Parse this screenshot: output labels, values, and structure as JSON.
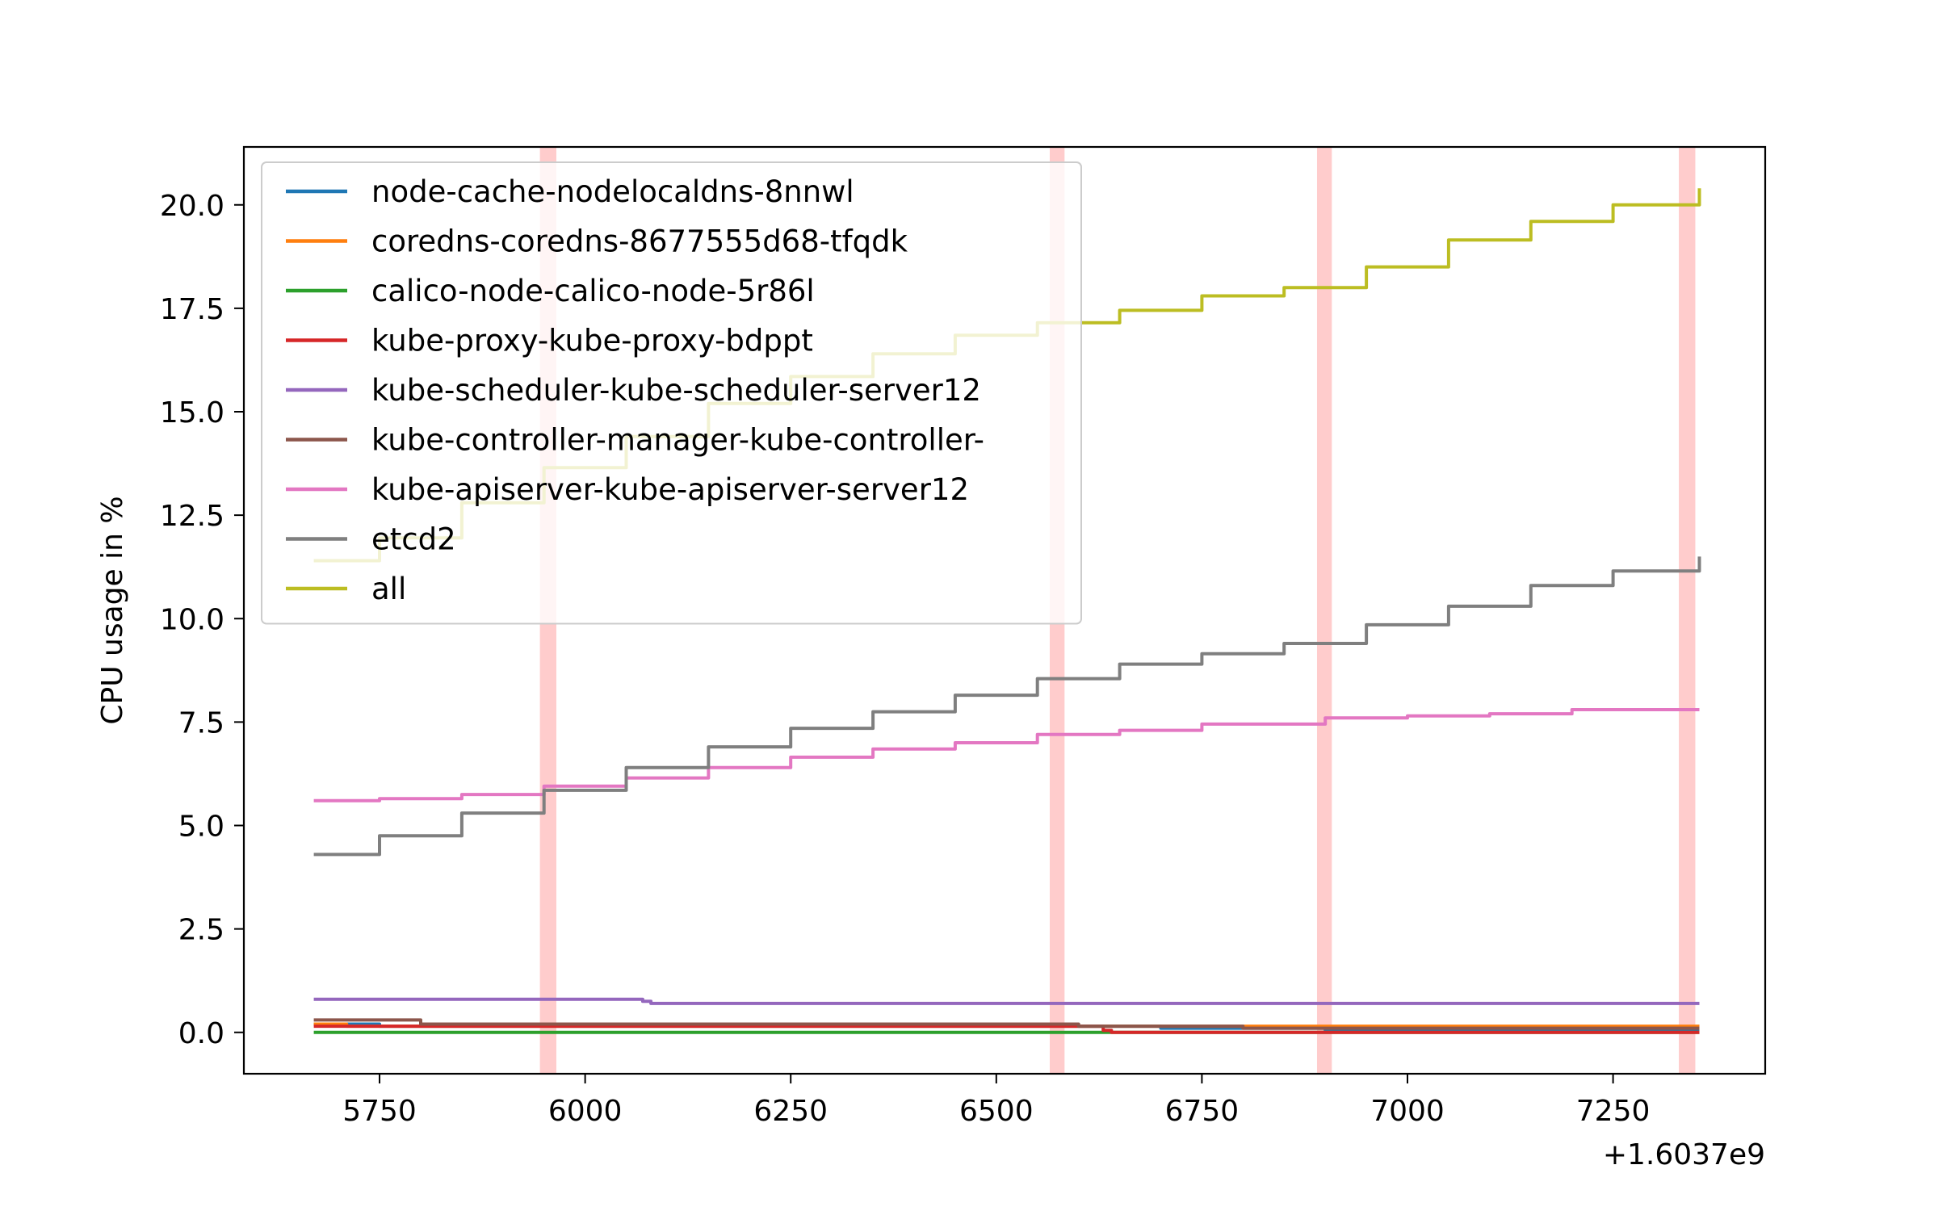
{
  "chart_data": {
    "type": "line",
    "title": "",
    "xlabel": "",
    "ylabel": "CPU usage in %",
    "x_offset_label": "+1.6037e9",
    "xlim": [
      5585,
      7435
    ],
    "ylim": [
      -1.0,
      21.4
    ],
    "xticks": [
      5750,
      6000,
      6250,
      6500,
      6750,
      7000,
      7250
    ],
    "xtick_labels": [
      "5750",
      "6000",
      "6250",
      "6500",
      "6750",
      "7000",
      "7250"
    ],
    "yticks": [
      0,
      2.5,
      5,
      7.5,
      10,
      12.5,
      15,
      17.5,
      20
    ],
    "ytick_labels": [
      "0.0",
      "2.5",
      "5.0",
      "7.5",
      "10.0",
      "12.5",
      "15.0",
      "17.5",
      "20.0"
    ],
    "grid": false,
    "legend_position": "upper-left",
    "highlight_bands": [
      {
        "x_start": 5945,
        "x_end": 5965,
        "color": "#ffcccc"
      },
      {
        "x_start": 6565,
        "x_end": 6583,
        "color": "#ffcccc"
      },
      {
        "x_start": 6890,
        "x_end": 6908,
        "color": "#ffcccc"
      },
      {
        "x_start": 7330,
        "x_end": 7350,
        "color": "#ffcccc"
      }
    ],
    "series": [
      {
        "name": "node-cache-nodelocaldns-8nnwl",
        "color": "#1f77b4",
        "x": [
          5670,
          5700,
          5750,
          5900,
          6100,
          6300,
          6500,
          6700,
          6900,
          7100,
          7355
        ],
        "y": [
          0.2,
          0.2,
          0.15,
          0.15,
          0.15,
          0.15,
          0.15,
          0.1,
          0.05,
          0.05,
          0.05
        ]
      },
      {
        "name": "coredns-coredns-8677555d68-tfqdk",
        "color": "#ff7f0e",
        "x": [
          5670,
          5710,
          5800,
          6000,
          6200,
          6400,
          6600,
          6800,
          7000,
          7200,
          7355
        ],
        "y": [
          0.2,
          0.15,
          0.15,
          0.15,
          0.15,
          0.15,
          0.15,
          0.15,
          0.15,
          0.15,
          0.15
        ]
      },
      {
        "name": "calico-node-calico-node-5r86l",
        "color": "#2ca02c",
        "x": [
          5670,
          5800,
          6000,
          6200,
          6400,
          6600,
          6800,
          7000,
          7200,
          7355
        ],
        "y": [
          0.0,
          0.0,
          0.0,
          0.0,
          0.0,
          0.0,
          0.0,
          0.0,
          0.0,
          0.0
        ]
      },
      {
        "name": "kube-proxy-kube-proxy-bdppt",
        "color": "#d62728",
        "x": [
          5670,
          5800,
          6000,
          6200,
          6400,
          6600,
          6630,
          6640,
          6700,
          6900,
          7100,
          7355
        ],
        "y": [
          0.15,
          0.15,
          0.15,
          0.15,
          0.15,
          0.15,
          0.05,
          0.0,
          0.0,
          0.0,
          0.0,
          0.0
        ]
      },
      {
        "name": "kube-scheduler-kube-scheduler-server12",
        "color": "#9467bd",
        "x": [
          5670,
          5800,
          5900,
          6000,
          6060,
          6070,
          6080,
          6200,
          6400,
          6600,
          6800,
          7000,
          7200,
          7355
        ],
        "y": [
          0.8,
          0.8,
          0.8,
          0.8,
          0.8,
          0.75,
          0.7,
          0.7,
          0.7,
          0.7,
          0.7,
          0.7,
          0.7,
          0.7
        ]
      },
      {
        "name": "kube-controller-manager-kube-controller-",
        "color": "#8c564b",
        "x": [
          5670,
          5710,
          5800,
          6000,
          6200,
          6400,
          6600,
          6800,
          7000,
          7200,
          7355
        ],
        "y": [
          0.3,
          0.3,
          0.2,
          0.2,
          0.2,
          0.2,
          0.15,
          0.1,
          0.1,
          0.1,
          0.1
        ]
      },
      {
        "name": "kube-apiserver-kube-apiserver-server12",
        "color": "#e377c2",
        "x": [
          5670,
          5750,
          5850,
          5950,
          6050,
          6150,
          6250,
          6350,
          6450,
          6550,
          6650,
          6750,
          6900,
          7000,
          7100,
          7200,
          7355
        ],
        "y": [
          5.6,
          5.65,
          5.75,
          5.95,
          6.15,
          6.4,
          6.65,
          6.85,
          7.0,
          7.2,
          7.3,
          7.45,
          7.6,
          7.65,
          7.7,
          7.8,
          7.8
        ]
      },
      {
        "name": "etcd2",
        "color": "#7f7f7f",
        "x": [
          5670,
          5750,
          5850,
          5950,
          6050,
          6150,
          6250,
          6350,
          6450,
          6550,
          6650,
          6750,
          6850,
          6950,
          7050,
          7150,
          7250,
          7355
        ],
        "y": [
          4.3,
          4.75,
          5.3,
          5.85,
          6.4,
          6.9,
          7.35,
          7.75,
          8.15,
          8.55,
          8.9,
          9.15,
          9.4,
          9.85,
          10.3,
          10.8,
          11.15,
          11.5
        ]
      },
      {
        "name": "all",
        "color": "#bcbd22",
        "x": [
          5670,
          5750,
          5850,
          5950,
          6050,
          6150,
          6250,
          6350,
          6450,
          6550,
          6650,
          6750,
          6850,
          6950,
          7050,
          7150,
          7250,
          7355
        ],
        "y": [
          11.4,
          11.95,
          12.8,
          13.65,
          14.4,
          15.2,
          15.85,
          16.4,
          16.85,
          17.15,
          17.45,
          17.8,
          18.0,
          18.5,
          19.15,
          19.6,
          20.0,
          20.4
        ]
      }
    ]
  }
}
